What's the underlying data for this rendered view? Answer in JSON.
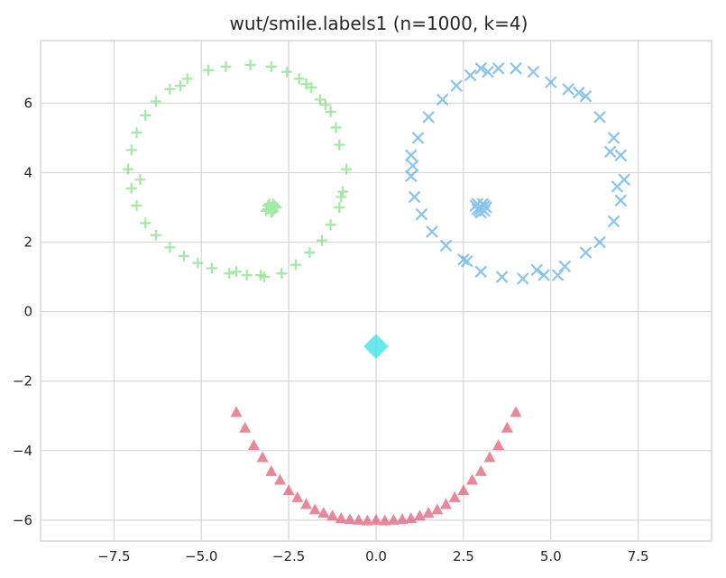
{
  "chart_data": {
    "type": "scatter",
    "title": "wut/smile.labels1 (n=1000, k=4)",
    "xlabel": "",
    "ylabel": "",
    "xlim": [
      -9.6,
      9.6
    ],
    "ylim": [
      -6.6,
      7.8
    ],
    "x_ticks": [
      -7.5,
      -5.0,
      -2.5,
      0.0,
      2.5,
      5.0,
      7.5
    ],
    "x_tick_labels": [
      "−7.5",
      "−5.0",
      "−2.5",
      "0.0",
      "2.5",
      "5.0",
      "7.5"
    ],
    "y_ticks": [
      -6,
      -4,
      -2,
      0,
      2,
      4,
      6
    ],
    "y_tick_labels": [
      "−6",
      "−4",
      "−2",
      "0",
      "2",
      "4",
      "6"
    ],
    "grid": true,
    "legend": "none",
    "colors": {
      "background": "#ffffff",
      "grid": "#d6d6d6",
      "text": "#262626"
    },
    "series": [
      {
        "marker": "plus",
        "color": "#5dd65d",
        "alpha": 0.55,
        "points": [
          [
            -3.0,
            7.05
          ],
          [
            -2.55,
            6.9
          ],
          [
            -2.2,
            6.7
          ],
          [
            -1.85,
            6.45
          ],
          [
            -1.6,
            6.1
          ],
          [
            -1.3,
            5.75
          ],
          [
            -1.15,
            5.3
          ],
          [
            -1.05,
            4.8
          ],
          [
            -0.85,
            4.1
          ],
          [
            -0.95,
            3.45
          ],
          [
            -1.05,
            3.0
          ],
          [
            -1.3,
            2.5
          ],
          [
            -1.55,
            2.05
          ],
          [
            -1.9,
            1.7
          ],
          [
            -2.3,
            1.35
          ],
          [
            -2.7,
            1.1
          ],
          [
            -3.2,
            1.0
          ],
          [
            -3.7,
            1.05
          ],
          [
            -4.2,
            1.1
          ],
          [
            -4.7,
            1.25
          ],
          [
            -5.1,
            1.4
          ],
          [
            -5.5,
            1.6
          ],
          [
            -5.9,
            1.85
          ],
          [
            -6.3,
            2.2
          ],
          [
            -6.6,
            2.55
          ],
          [
            -6.85,
            3.05
          ],
          [
            -7.0,
            3.55
          ],
          [
            -7.1,
            4.1
          ],
          [
            -7.0,
            4.65
          ],
          [
            -6.85,
            5.15
          ],
          [
            -6.6,
            5.65
          ],
          [
            -6.3,
            6.05
          ],
          [
            -5.9,
            6.4
          ],
          [
            -5.4,
            6.7
          ],
          [
            -4.8,
            6.95
          ],
          [
            -4.3,
            7.05
          ],
          [
            -3.6,
            7.1
          ],
          [
            -2.0,
            6.55
          ],
          [
            -1.0,
            3.3
          ],
          [
            -4.0,
            1.15
          ],
          [
            -6.75,
            3.8
          ],
          [
            -5.6,
            6.5
          ],
          [
            -3.3,
            1.05
          ],
          [
            -1.45,
            5.95
          ],
          [
            -3.0,
            3.0
          ],
          [
            -2.9,
            3.05
          ],
          [
            -3.1,
            2.95
          ],
          [
            -3.05,
            3.1
          ],
          [
            -2.95,
            2.9
          ],
          [
            -3.1,
            3.05
          ],
          [
            -2.85,
            3.0
          ],
          [
            -3.15,
            2.9
          ],
          [
            -2.95,
            3.1
          ],
          [
            -3.0,
            2.85
          ]
        ]
      },
      {
        "marker": "x",
        "color": "#2b93e0",
        "alpha": 0.55,
        "points": [
          [
            3.0,
            7.0
          ],
          [
            3.5,
            7.0
          ],
          [
            4.0,
            7.0
          ],
          [
            4.5,
            6.9
          ],
          [
            5.0,
            6.6
          ],
          [
            5.5,
            6.4
          ],
          [
            6.0,
            6.2
          ],
          [
            6.4,
            5.6
          ],
          [
            6.8,
            5.0
          ],
          [
            7.0,
            4.5
          ],
          [
            7.1,
            3.8
          ],
          [
            7.0,
            3.2
          ],
          [
            6.8,
            2.6
          ],
          [
            6.4,
            2.0
          ],
          [
            6.0,
            1.7
          ],
          [
            5.4,
            1.3
          ],
          [
            4.8,
            1.05
          ],
          [
            4.2,
            0.95
          ],
          [
            3.6,
            1.0
          ],
          [
            3.0,
            1.15
          ],
          [
            2.5,
            1.5
          ],
          [
            2.0,
            1.9
          ],
          [
            1.6,
            2.3
          ],
          [
            1.3,
            2.8
          ],
          [
            1.1,
            3.3
          ],
          [
            1.0,
            3.9
          ],
          [
            1.0,
            4.5
          ],
          [
            1.2,
            5.0
          ],
          [
            1.5,
            5.6
          ],
          [
            1.9,
            6.1
          ],
          [
            2.3,
            6.5
          ],
          [
            2.7,
            6.8
          ],
          [
            4.6,
            1.2
          ],
          [
            5.2,
            1.05
          ],
          [
            6.7,
            4.6
          ],
          [
            3.2,
            6.9
          ],
          [
            5.8,
            6.3
          ],
          [
            1.05,
            4.2
          ],
          [
            2.6,
            1.45
          ],
          [
            6.9,
            3.6
          ],
          [
            3.0,
            3.0
          ],
          [
            3.1,
            3.05
          ],
          [
            2.9,
            2.95
          ],
          [
            3.05,
            3.1
          ],
          [
            2.95,
            2.9
          ],
          [
            3.15,
            3.0
          ],
          [
            2.85,
            3.05
          ],
          [
            3.0,
            2.85
          ],
          [
            3.1,
            2.9
          ],
          [
            2.9,
            3.1
          ]
        ]
      },
      {
        "marker": "diamond",
        "color": "#2de0e8",
        "alpha": 0.7,
        "points": [
          [
            0.0,
            -1.0
          ],
          [
            0.1,
            -1.0
          ],
          [
            -0.1,
            -1.0
          ],
          [
            0.0,
            -0.9
          ],
          [
            0.0,
            -1.1
          ],
          [
            0.08,
            -0.93
          ],
          [
            -0.08,
            -1.07
          ],
          [
            0.06,
            -1.08
          ],
          [
            -0.06,
            -0.92
          ],
          [
            0.15,
            -1.0
          ],
          [
            -0.15,
            -1.0
          ],
          [
            0.0,
            -0.85
          ],
          [
            0.0,
            -1.15
          ]
        ]
      },
      {
        "marker": "triangle",
        "color": "#e05670",
        "alpha": 0.7,
        "points": [
          [
            -4.0,
            -2.9
          ],
          [
            -3.75,
            -3.35
          ],
          [
            -3.5,
            -3.85
          ],
          [
            -3.25,
            -4.2
          ],
          [
            -3.0,
            -4.6
          ],
          [
            -2.75,
            -4.85
          ],
          [
            -2.5,
            -5.15
          ],
          [
            -2.25,
            -5.35
          ],
          [
            -2.0,
            -5.55
          ],
          [
            -1.75,
            -5.7
          ],
          [
            -1.5,
            -5.8
          ],
          [
            -1.25,
            -5.88
          ],
          [
            -1.0,
            -5.95
          ],
          [
            -0.75,
            -5.98
          ],
          [
            -0.5,
            -6.0
          ],
          [
            -0.25,
            -6.02
          ],
          [
            0.0,
            -6.0
          ],
          [
            0.25,
            -6.02
          ],
          [
            0.5,
            -6.0
          ],
          [
            0.75,
            -5.98
          ],
          [
            1.0,
            -5.95
          ],
          [
            1.25,
            -5.88
          ],
          [
            1.5,
            -5.8
          ],
          [
            1.75,
            -5.7
          ],
          [
            2.0,
            -5.55
          ],
          [
            2.25,
            -5.35
          ],
          [
            2.5,
            -5.15
          ],
          [
            2.75,
            -4.85
          ],
          [
            3.0,
            -4.6
          ],
          [
            3.25,
            -4.2
          ],
          [
            3.5,
            -3.85
          ],
          [
            3.75,
            -3.35
          ],
          [
            4.0,
            -2.9
          ]
        ]
      }
    ]
  }
}
